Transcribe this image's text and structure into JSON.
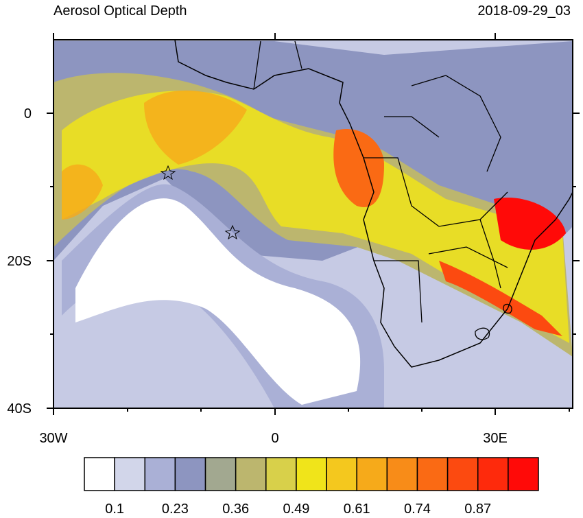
{
  "header": {
    "title": "Aerosol Optical Depth",
    "time": "2018-09-29_03"
  },
  "axes": {
    "y_labels": [
      "0",
      "20S",
      "40S"
    ],
    "x_labels": [
      "30W",
      "0",
      "30E"
    ]
  },
  "colorbar": {
    "colors": [
      "#ffffff",
      "#d2d6ea",
      "#aab0d6",
      "#8d95c0",
      "#a2a890",
      "#bcb66e",
      "#d8d04a",
      "#f0e41a",
      "#f4c81e",
      "#f6aa1a",
      "#f88c18",
      "#fa6a14",
      "#fc4a10",
      "#fe2a0c",
      "#ff0a08"
    ],
    "labels": [
      "0.1",
      "0.23",
      "0.36",
      "0.49",
      "0.61",
      "0.74",
      "0.87"
    ]
  }
}
